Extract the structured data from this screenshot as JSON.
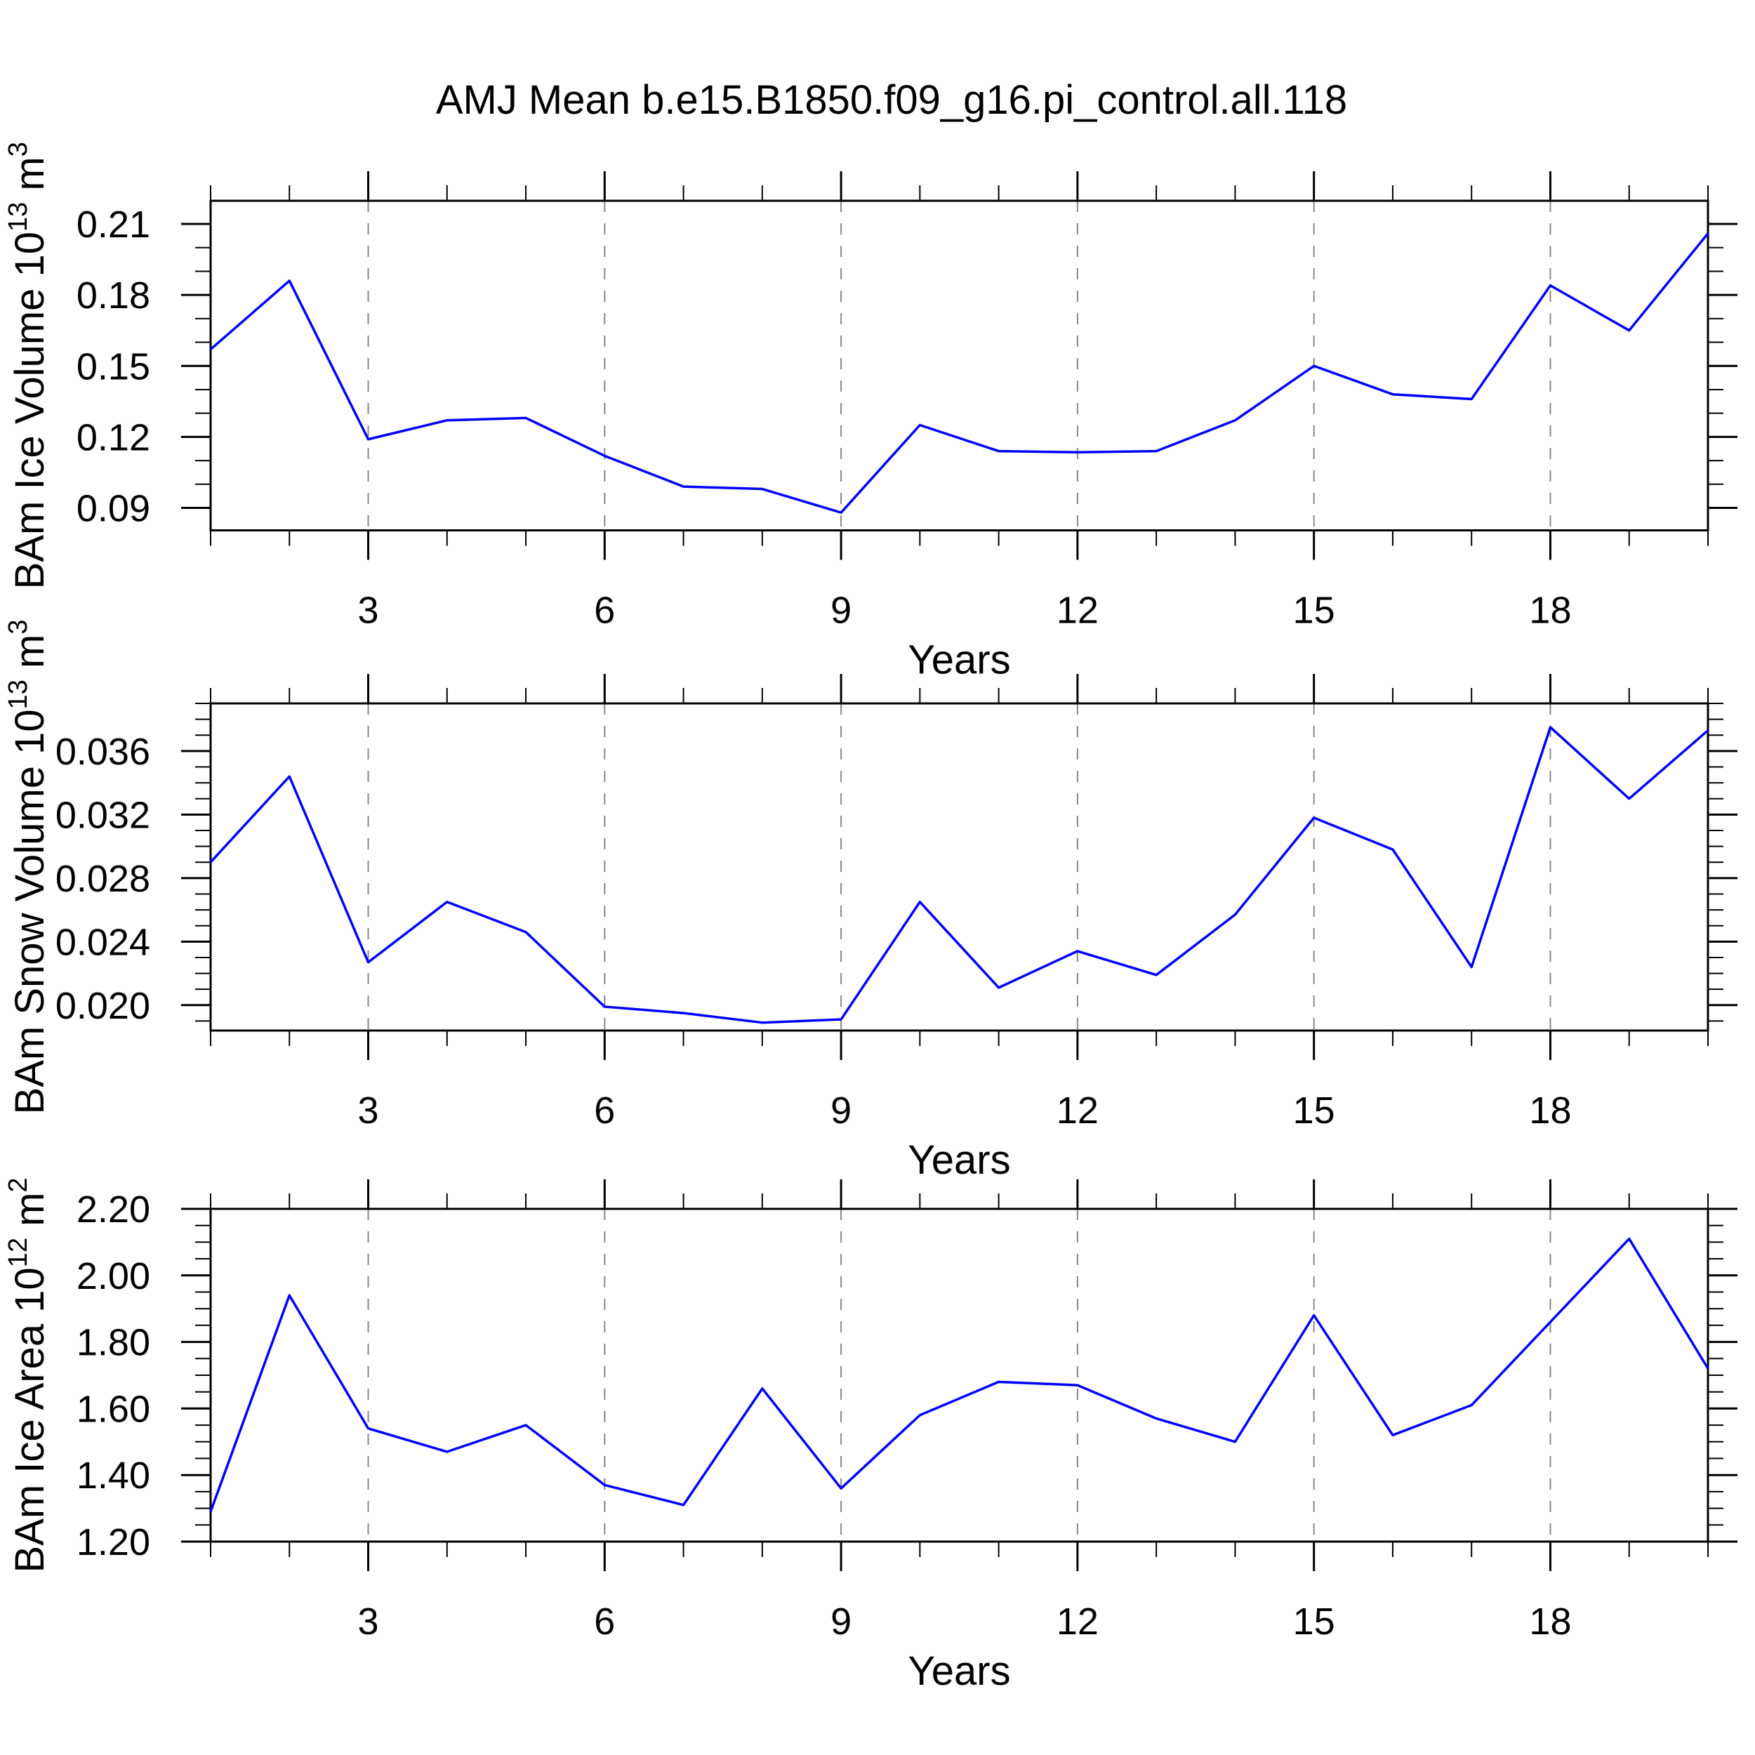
{
  "title": "AMJ Mean b.e15.B1850.f09_g16.pi_control.all.118",
  "xlabel": "Years",
  "line_color": "#0000ff",
  "grid_color": "#888888",
  "axis_color": "#000000",
  "background_color": "#ffffff",
  "x_major_tick_labels": [
    "3",
    "6",
    "9",
    "12",
    "15",
    "18"
  ],
  "chart_data": [
    {
      "type": "line",
      "id": "ice-volume",
      "ylabel_text": "BAm Ice Volume 10^13 m^3",
      "ylabel_parts": [
        {
          "text": "BAm Ice Volume 10"
        },
        {
          "text": "13",
          "sup": true
        },
        {
          "text": " m"
        },
        {
          "text": "3",
          "sup": true
        }
      ],
      "x": [
        1,
        2,
        3,
        4,
        5,
        6,
        7,
        8,
        9,
        10,
        11,
        12,
        13,
        14,
        15,
        16,
        17,
        18,
        19,
        20
      ],
      "values": [
        0.157,
        0.186,
        0.119,
        0.127,
        0.128,
        0.112,
        0.099,
        0.098,
        0.088,
        0.125,
        0.114,
        0.1135,
        0.114,
        0.127,
        0.15,
        0.138,
        0.136,
        0.184,
        0.165,
        0.206
      ],
      "xlim": [
        1,
        20
      ],
      "ylim": [
        0.0805,
        0.2198
      ],
      "yticks": [
        0.09,
        0.12,
        0.15,
        0.18,
        0.21
      ],
      "ytick_decimals": 2,
      "y_minor_step": 0.01,
      "x_major_ticks": [
        3,
        6,
        9,
        12,
        15,
        18
      ],
      "x_minor_step": 1,
      "grid": "vertical dashed lines at labeled x ticks",
      "legend": "none",
      "xlabel": "Years"
    },
    {
      "type": "line",
      "id": "snow-volume",
      "ylabel_text": "BAm Snow Volume 10^13 m^3",
      "ylabel_parts": [
        {
          "text": "BAm Snow Volume 10"
        },
        {
          "text": "13",
          "sup": true
        },
        {
          "text": " m"
        },
        {
          "text": "3",
          "sup": true
        }
      ],
      "x": [
        1,
        2,
        3,
        4,
        5,
        6,
        7,
        8,
        9,
        10,
        11,
        12,
        13,
        14,
        15,
        16,
        17,
        18,
        19,
        20
      ],
      "values": [
        0.029,
        0.0344,
        0.0227,
        0.0265,
        0.0246,
        0.0199,
        0.0195,
        0.0189,
        0.0191,
        0.0265,
        0.0211,
        0.0234,
        0.0219,
        0.0257,
        0.0318,
        0.0298,
        0.0224,
        0.0375,
        0.033,
        0.0373
      ],
      "xlim": [
        1,
        20
      ],
      "ylim": [
        0.0184,
        0.039
      ],
      "yticks": [
        0.02,
        0.024,
        0.028,
        0.032,
        0.036
      ],
      "ytick_decimals": 3,
      "y_minor_step": 0.001,
      "x_major_ticks": [
        3,
        6,
        9,
        12,
        15,
        18
      ],
      "x_minor_step": 1,
      "grid": "vertical dashed lines at labeled x ticks",
      "legend": "none",
      "xlabel": "Years"
    },
    {
      "type": "line",
      "id": "ice-area",
      "ylabel_text": "BAm Ice Area 10^12 m^2",
      "ylabel_parts": [
        {
          "text": "BAm Ice Area 10"
        },
        {
          "text": "12",
          "sup": true
        },
        {
          "text": " m"
        },
        {
          "text": "2",
          "sup": true
        }
      ],
      "x": [
        1,
        2,
        3,
        4,
        5,
        6,
        7,
        8,
        9,
        10,
        11,
        12,
        13,
        14,
        15,
        16,
        17,
        18,
        19,
        20
      ],
      "values": [
        1.29,
        1.94,
        1.54,
        1.47,
        1.55,
        1.37,
        1.31,
        1.66,
        1.36,
        1.58,
        1.68,
        1.67,
        1.57,
        1.5,
        1.88,
        1.52,
        1.61,
        1.86,
        2.11,
        1.72
      ],
      "xlim": [
        1,
        20
      ],
      "ylim": [
        1.2,
        2.2
      ],
      "yticks": [
        1.2,
        1.4,
        1.6,
        1.8,
        2.0,
        2.2
      ],
      "ytick_decimals": 2,
      "y_minor_step": 0.05,
      "x_major_ticks": [
        3,
        6,
        9,
        12,
        15,
        18
      ],
      "x_minor_step": 1,
      "grid": "vertical dashed lines at labeled x ticks",
      "legend": "none",
      "xlabel": "Years"
    }
  ]
}
